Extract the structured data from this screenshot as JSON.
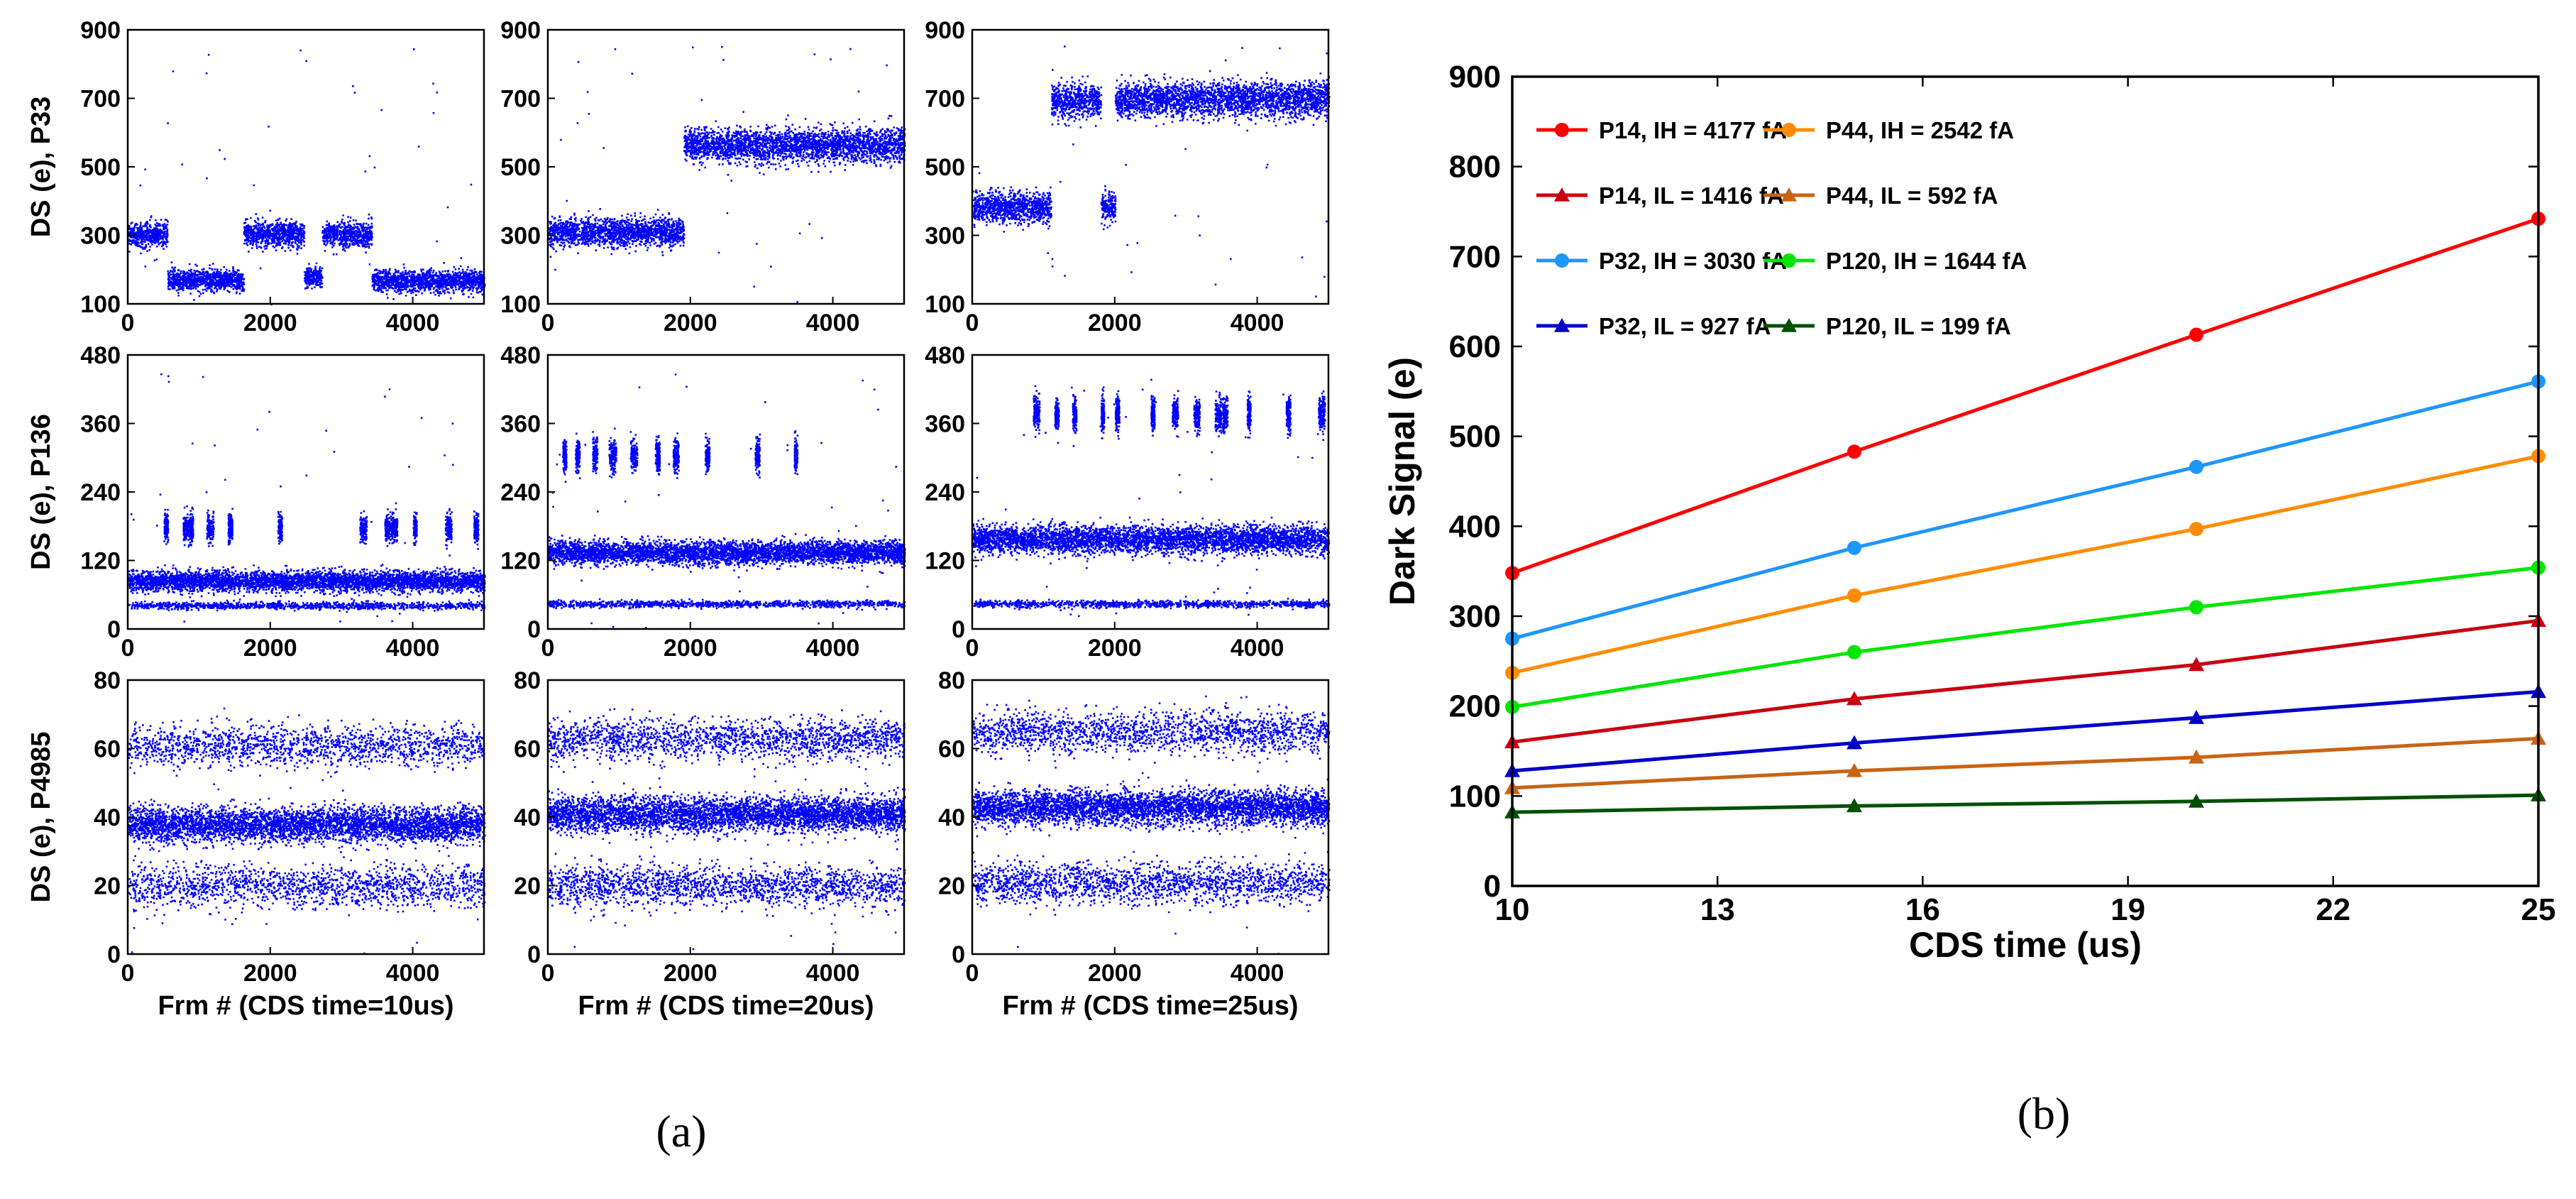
{
  "panel_a": {
    "caption": "(a)",
    "row_ylabels": [
      "DS (e), P33",
      "DS (e), P136",
      "DS (e), P4985"
    ],
    "col_xlabels": [
      "Frm # (CDS time=10us)",
      "Frm # (CDS time=20us)",
      "Frm # (CDS time=25us)"
    ],
    "dot_color": "#0000ff"
  },
  "panel_b": {
    "caption": "(b)"
  },
  "chart_data": [
    {
      "type": "scatter",
      "id": "a-r0-c0",
      "xlim": [
        0,
        5000
      ],
      "ylim": [
        100,
        900
      ],
      "xticks": [
        "0",
        "2000",
        "4000"
      ],
      "yticks": [
        "100",
        "300",
        "500",
        "700",
        "900"
      ],
      "xlabel": "",
      "ylabel": "DS (e), P33",
      "levels": [
        {
          "from": 0,
          "to": 550,
          "y": 305,
          "spread": 18
        },
        {
          "from": 550,
          "to": 1620,
          "y": 172,
          "spread": 15
        },
        {
          "from": 1620,
          "to": 2470,
          "y": 307,
          "spread": 18
        },
        {
          "from": 2470,
          "to": 2720,
          "y": 178,
          "spread": 15
        },
        {
          "from": 2720,
          "to": 3420,
          "y": 305,
          "spread": 18
        },
        {
          "from": 3420,
          "to": 5000,
          "y": 168,
          "spread": 15
        }
      ]
    },
    {
      "type": "scatter",
      "id": "a-r0-c1",
      "xlim": [
        0,
        5000
      ],
      "ylim": [
        100,
        900
      ],
      "xticks": [
        "0",
        "2000",
        "4000"
      ],
      "yticks": [
        "100",
        "300",
        "500",
        "700",
        "900"
      ],
      "xlabel": "",
      "ylabel": "",
      "levels": [
        {
          "from": 0,
          "to": 1900,
          "y": 312,
          "spread": 20
        },
        {
          "from": 1900,
          "to": 5000,
          "y": 565,
          "spread": 25
        }
      ]
    },
    {
      "type": "scatter",
      "id": "a-r0-c2",
      "xlim": [
        0,
        5000
      ],
      "ylim": [
        100,
        900
      ],
      "xticks": [
        "0",
        "2000",
        "4000"
      ],
      "yticks": [
        "100",
        "300",
        "500",
        "700",
        "900"
      ],
      "xlabel": "",
      "ylabel": "",
      "levels": [
        {
          "from": 0,
          "to": 1100,
          "y": 385,
          "spread": 22
        },
        {
          "from": 1100,
          "to": 1800,
          "y": 695,
          "spread": 25
        },
        {
          "from": 1800,
          "to": 2000,
          "y": 385,
          "spread": 22
        },
        {
          "from": 2000,
          "to": 5000,
          "y": 700,
          "spread": 25
        }
      ]
    },
    {
      "type": "scatter",
      "id": "a-r1-c0",
      "xlim": [
        0,
        5000
      ],
      "ylim": [
        0,
        480
      ],
      "xticks": [
        "0",
        "2000",
        "4000"
      ],
      "yticks": [
        "0",
        "120",
        "240",
        "360",
        "480"
      ],
      "xlabel": "",
      "ylabel": "DS (e), P136",
      "levels": [
        {
          "from": 0,
          "to": 5000,
          "y": 85,
          "spread": 9
        },
        {
          "from": 0,
          "to": 5000,
          "y": 42,
          "spread": 3,
          "density": 0.25
        }
      ],
      "bursts": {
        "y": 178,
        "spread": 12,
        "xs": [
          500,
          770,
          860,
          1100,
          1400,
          2100,
          3250,
          3600,
          3700,
          4000,
          4450,
          4850
        ]
      }
    },
    {
      "type": "scatter",
      "id": "a-r1-c1",
      "xlim": [
        0,
        5000
      ],
      "ylim": [
        0,
        480
      ],
      "xticks": [
        "0",
        "2000",
        "4000"
      ],
      "yticks": [
        "0",
        "120",
        "240",
        "360",
        "480"
      ],
      "xlabel": "",
      "ylabel": "",
      "levels": [
        {
          "from": 0,
          "to": 5000,
          "y": 135,
          "spread": 10
        },
        {
          "from": 0,
          "to": 5000,
          "y": 45,
          "spread": 3,
          "density": 0.25
        }
      ],
      "bursts": {
        "y": 305,
        "spread": 15,
        "xs": [
          200,
          380,
          620,
          850,
          1150,
          1500,
          1750,
          2200,
          2900,
          3450
        ]
      }
    },
    {
      "type": "scatter",
      "id": "a-r1-c2",
      "xlim": [
        0,
        5000
      ],
      "ylim": [
        0,
        480
      ],
      "xticks": [
        "0",
        "2000",
        "4000"
      ],
      "yticks": [
        "0",
        "120",
        "240",
        "360",
        "480"
      ],
      "xlabel": "",
      "ylabel": "",
      "levels": [
        {
          "from": 0,
          "to": 5000,
          "y": 158,
          "spread": 12
        },
        {
          "from": 0,
          "to": 5000,
          "y": 45,
          "spread": 3,
          "density": 0.25
        }
      ],
      "bursts": {
        "y": 378,
        "spread": 15,
        "xs": [
          850,
          1150,
          1400,
          1800,
          2000,
          2500,
          2800,
          3100,
          3400,
          3500,
          3850,
          4400,
          4850
        ]
      }
    },
    {
      "type": "scatter",
      "id": "a-r2-c0",
      "xlim": [
        0,
        5000
      ],
      "ylim": [
        0,
        80
      ],
      "xticks": [
        "0",
        "2000",
        "4000"
      ],
      "yticks": [
        "0",
        "20",
        "40",
        "60",
        "80"
      ],
      "xlabel": "Frm # (CDS time=10us)",
      "ylabel": "DS (e), P4985",
      "levels": [
        {
          "from": 0,
          "to": 5000,
          "y": 38,
          "spread": 2.5
        },
        {
          "from": 0,
          "to": 5000,
          "y": 61,
          "spread": 3,
          "density": 0.35
        },
        {
          "from": 0,
          "to": 5000,
          "y": 20,
          "spread": 3,
          "density": 0.35
        }
      ]
    },
    {
      "type": "scatter",
      "id": "a-r2-c1",
      "xlim": [
        0,
        5000
      ],
      "ylim": [
        0,
        80
      ],
      "xticks": [
        "0",
        "2000",
        "4000"
      ],
      "yticks": [
        "0",
        "20",
        "40",
        "60",
        "80"
      ],
      "xlabel": "Frm # (CDS time=20us)",
      "ylabel": "",
      "levels": [
        {
          "from": 0,
          "to": 5000,
          "y": 41,
          "spread": 2.5
        },
        {
          "from": 0,
          "to": 5000,
          "y": 63,
          "spread": 3,
          "density": 0.4
        },
        {
          "from": 0,
          "to": 5000,
          "y": 20,
          "spread": 3,
          "density": 0.4
        }
      ]
    },
    {
      "type": "scatter",
      "id": "a-r2-c2",
      "xlim": [
        0,
        5000
      ],
      "ylim": [
        0,
        80
      ],
      "xticks": [
        "0",
        "2000",
        "4000"
      ],
      "yticks": [
        "0",
        "20",
        "40",
        "60",
        "80"
      ],
      "xlabel": "Frm # (CDS time=25us)",
      "ylabel": "",
      "levels": [
        {
          "from": 0,
          "to": 5000,
          "y": 43,
          "spread": 2.5
        },
        {
          "from": 0,
          "to": 5000,
          "y": 65,
          "spread": 3,
          "density": 0.4
        },
        {
          "from": 0,
          "to": 5000,
          "y": 21,
          "spread": 3,
          "density": 0.4
        }
      ]
    },
    {
      "type": "line",
      "id": "b",
      "title": "",
      "xlabel": "CDS time (us)",
      "ylabel": "Dark Signal (e)",
      "xlim": [
        10,
        25
      ],
      "ylim": [
        0,
        900
      ],
      "xticks": [
        "10",
        "13",
        "16",
        "19",
        "22",
        "25"
      ],
      "yticks": [
        "0",
        "100",
        "200",
        "300",
        "400",
        "500",
        "600",
        "700",
        "800",
        "900"
      ],
      "x": [
        10,
        15,
        20,
        25
      ],
      "legend_position": "top-left",
      "series": [
        {
          "name": "P14, IH = 4177 fA",
          "color": "#ff0000",
          "marker": "circle",
          "values": [
            348,
            483,
            613,
            742
          ]
        },
        {
          "name": "P44, IH = 2542 fA",
          "color": "#ff8c00",
          "marker": "circle",
          "values": [
            237,
            323,
            397,
            478
          ]
        },
        {
          "name": "P14, IL = 1416 fA",
          "color": "#c8000f",
          "marker": "triangle",
          "values": [
            160,
            208,
            246,
            295
          ]
        },
        {
          "name": "P44, IL = 592 fA",
          "color": "#c86414",
          "marker": "triangle",
          "values": [
            109,
            128,
            143,
            164
          ]
        },
        {
          "name": "P32, IH = 3030 fA",
          "color": "#1e96ff",
          "marker": "circle",
          "values": [
            275,
            376,
            466,
            561
          ]
        },
        {
          "name": "P120, IH = 1644 fA",
          "color": "#00e600",
          "marker": "circle",
          "values": [
            199,
            260,
            310,
            354
          ]
        },
        {
          "name": "P32, IL = 927 fA",
          "color": "#0000c8",
          "marker": "triangle",
          "values": [
            128,
            159,
            187,
            216
          ]
        },
        {
          "name": "P120, IL = 199 fA",
          "color": "#005000",
          "marker": "triangle",
          "values": [
            82,
            89,
            94,
            101
          ]
        }
      ]
    }
  ]
}
